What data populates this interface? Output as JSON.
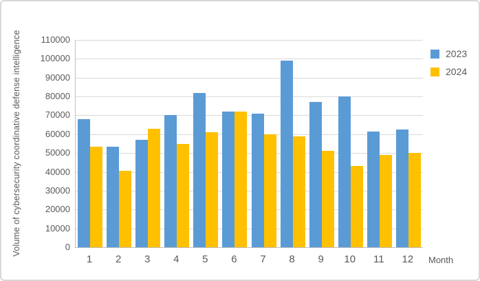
{
  "chart_data": {
    "type": "bar",
    "title": "",
    "xlabel": "Month",
    "ylabel": "Volume of cybersecurity coordinative defense intelligence",
    "categories": [
      "1",
      "2",
      "3",
      "4",
      "5",
      "6",
      "7",
      "8",
      "9",
      "10",
      "11",
      "12"
    ],
    "series": [
      {
        "name": "2023",
        "color": "#5B9BD5",
        "values": [
          68000,
          53500,
          57000,
          70000,
          82000,
          72000,
          71000,
          99000,
          77000,
          80000,
          61500,
          62500
        ]
      },
      {
        "name": "2024",
        "color": "#FFC000",
        "values": [
          53500,
          40500,
          63000,
          55000,
          61000,
          72000,
          60000,
          59000,
          51000,
          43000,
          49000,
          50000
        ]
      }
    ],
    "ylim": [
      0,
      110000
    ],
    "yticks": [
      0,
      10000,
      20000,
      30000,
      40000,
      50000,
      60000,
      70000,
      80000,
      90000,
      100000,
      110000
    ],
    "grid": true,
    "legend_position": "top-right"
  },
  "colors": {
    "gridline": "#D9D9D9",
    "axis_line": "#BFBFBF",
    "label_text": "#595959",
    "background": "#FFFFFF",
    "frame_border": "#D8D8D8"
  }
}
